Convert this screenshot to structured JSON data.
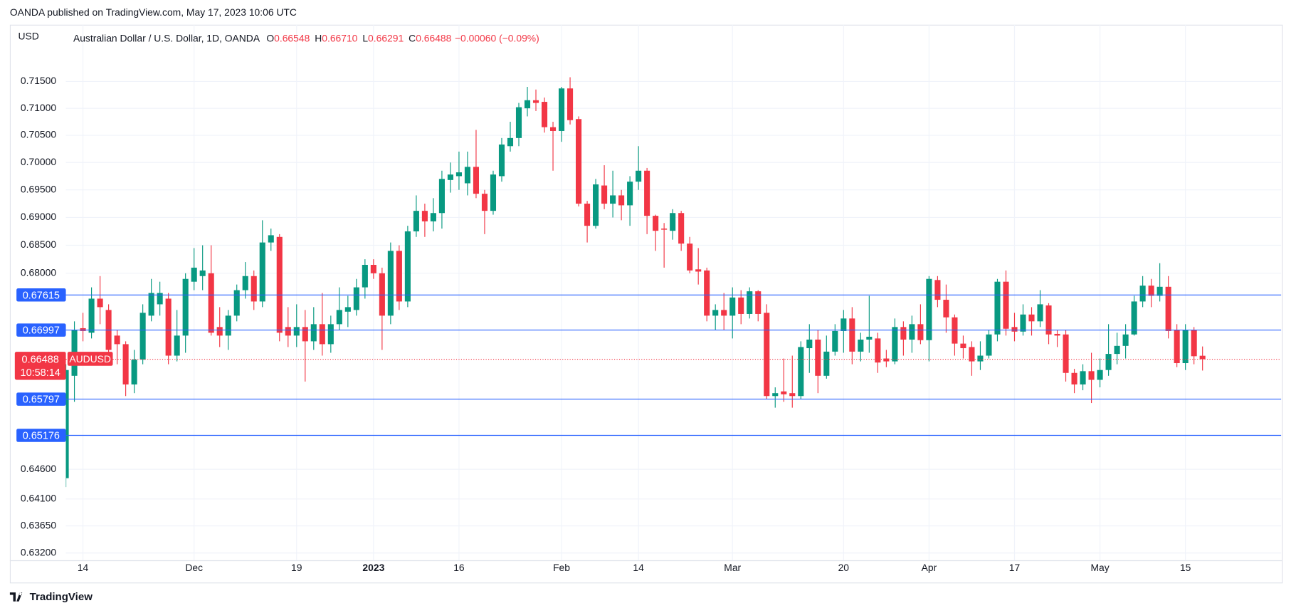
{
  "header": {
    "published": "OANDA published on TradingView.com, May 17, 2023 10:06 UTC",
    "currency": "USD",
    "instrument": "Australian Dollar / U.S. Dollar, 1D, OANDA",
    "legend": [
      {
        "key": "O",
        "value": "0.66548"
      },
      {
        "key": "H",
        "value": "0.66710"
      },
      {
        "key": "L",
        "value": "0.66291"
      },
      {
        "key": "C",
        "value": "0.66488"
      }
    ],
    "change": "−0.00060 (−0.09%)"
  },
  "chart_data": {
    "type": "candlestick",
    "categories": [
      null,
      null,
      "14",
      null,
      null,
      null,
      null,
      null,
      null,
      null,
      null,
      null,
      null,
      null,
      null,
      "Dec",
      null,
      null,
      null,
      null,
      null,
      null,
      null,
      null,
      null,
      null,
      null,
      "19",
      null,
      null,
      null,
      null,
      null,
      null,
      null,
      null,
      "2023",
      null,
      null,
      null,
      null,
      null,
      null,
      null,
      null,
      null,
      "16",
      null,
      null,
      null,
      null,
      null,
      null,
      null,
      null,
      null,
      null,
      null,
      "Feb",
      null,
      null,
      null,
      null,
      null,
      null,
      null,
      null,
      "14",
      null,
      null,
      null,
      null,
      null,
      null,
      null,
      null,
      null,
      null,
      "Mar",
      null,
      null,
      null,
      null,
      null,
      null,
      null,
      null,
      null,
      null,
      null,
      null,
      "20",
      null,
      null,
      null,
      null,
      null,
      null,
      null,
      null,
      null,
      "Apr",
      null,
      null,
      null,
      null,
      null,
      null,
      null,
      null,
      null,
      "17",
      null,
      null,
      null,
      null,
      null,
      null,
      null,
      null,
      null,
      "May",
      null,
      null,
      null,
      null,
      null,
      null,
      null,
      null,
      null,
      "15",
      null,
      null
    ],
    "open": [
      0.6445,
      0.662,
      0.6703,
      0.6695,
      0.6755,
      0.6735,
      0.669,
      0.6675,
      0.6605,
      0.6648,
      0.6725,
      0.6745,
      0.6755,
      0.6655,
      0.669,
      0.6785,
      0.6795,
      0.68,
      0.6705,
      0.669,
      0.6725,
      0.677,
      0.6795,
      0.675,
      0.6855,
      0.6865,
      0.6705,
      0.669,
      0.6705,
      0.668,
      0.671,
      0.6675,
      0.671,
      0.6732,
      0.6735,
      0.6775,
      0.6815,
      0.68,
      0.6725,
      0.684,
      0.675,
      0.6875,
      0.6912,
      0.6893,
      0.6908,
      0.6968,
      0.6975,
      0.6962,
      0.6992,
      0.6943,
      0.6912,
      0.6975,
      0.703,
      0.7045,
      0.71,
      0.7115,
      0.7112,
      0.7065,
      0.7058,
      0.7137,
      0.708,
      0.6925,
      0.6885,
      0.6958,
      0.6925,
      0.694,
      0.6922,
      0.6965,
      0.6985,
      0.6903,
      0.688,
      0.6876,
      0.6908,
      0.6853,
      0.6807,
      0.6805,
      0.6725,
      0.6735,
      0.6725,
      0.6757,
      0.6728,
      0.6768,
      0.673,
      0.6585,
      0.6593,
      0.659,
      0.6585,
      0.6668,
      0.6683,
      0.662,
      0.6662,
      0.6698,
      0.672,
      0.6662,
      0.6683,
      0.6685,
      0.665,
      0.6645,
      0.6705,
      0.6683,
      0.671,
      0.6682,
      0.6788,
      0.6753,
      0.6722,
      0.6676,
      0.667,
      0.6645,
      0.6655,
      0.6692,
      0.6785,
      0.6705,
      0.6697,
      0.6727,
      0.6715,
      0.6743,
      0.6693,
      0.6692,
      0.6625,
      0.6605,
      0.6628,
      0.6613,
      0.663,
      0.6658,
      0.6672,
      0.6692,
      0.675,
      0.6778,
      0.676,
      0.6776,
      0.67,
      0.6642,
      0.67,
      0.66548
    ],
    "high": [
      0.664,
      0.6715,
      0.673,
      0.6775,
      0.6795,
      0.6745,
      0.67,
      0.668,
      0.6665,
      0.6745,
      0.679,
      0.6785,
      0.6765,
      0.6735,
      0.68,
      0.6845,
      0.685,
      0.685,
      0.674,
      0.6735,
      0.678,
      0.682,
      0.6805,
      0.6895,
      0.688,
      0.687,
      0.674,
      0.6745,
      0.6735,
      0.674,
      0.6765,
      0.6725,
      0.6775,
      0.676,
      0.679,
      0.6825,
      0.6825,
      0.681,
      0.6855,
      0.685,
      0.6885,
      0.694,
      0.6925,
      0.6935,
      0.6985,
      0.7,
      0.702,
      0.702,
      0.706,
      0.695,
      0.6985,
      0.7045,
      0.7075,
      0.711,
      0.714,
      0.7135,
      0.712,
      0.7075,
      0.714,
      0.7158,
      0.7085,
      0.693,
      0.697,
      0.6995,
      0.6985,
      0.695,
      0.6975,
      0.703,
      0.699,
      0.6905,
      0.689,
      0.6915,
      0.6912,
      0.6865,
      0.6845,
      0.681,
      0.6745,
      0.6765,
      0.6775,
      0.677,
      0.6775,
      0.677,
      0.6745,
      0.66,
      0.665,
      0.6655,
      0.668,
      0.671,
      0.67,
      0.669,
      0.671,
      0.6735,
      0.674,
      0.6695,
      0.676,
      0.6695,
      0.6665,
      0.672,
      0.6715,
      0.6725,
      0.6745,
      0.6795,
      0.6795,
      0.678,
      0.6727,
      0.669,
      0.668,
      0.668,
      0.67,
      0.679,
      0.6805,
      0.673,
      0.6745,
      0.674,
      0.677,
      0.6747,
      0.67,
      0.67,
      0.6632,
      0.664,
      0.666,
      0.665,
      0.671,
      0.6695,
      0.671,
      0.676,
      0.6795,
      0.679,
      0.6818,
      0.6795,
      0.671,
      0.671,
      0.6705,
      0.6671
    ],
    "low": [
      0.643,
      0.6575,
      0.668,
      0.6685,
      0.671,
      0.664,
      0.664,
      0.6585,
      0.659,
      0.664,
      0.6715,
      0.6725,
      0.664,
      0.6645,
      0.666,
      0.677,
      0.677,
      0.669,
      0.667,
      0.6665,
      0.6715,
      0.6755,
      0.6735,
      0.674,
      0.684,
      0.668,
      0.667,
      0.667,
      0.661,
      0.6665,
      0.6655,
      0.666,
      0.67,
      0.6705,
      0.6725,
      0.6755,
      0.679,
      0.6665,
      0.671,
      0.6735,
      0.674,
      0.6865,
      0.6865,
      0.6875,
      0.688,
      0.6945,
      0.695,
      0.694,
      0.6935,
      0.687,
      0.6905,
      0.6965,
      0.702,
      0.703,
      0.7085,
      0.7095,
      0.7055,
      0.6985,
      0.7038,
      0.707,
      0.692,
      0.6855,
      0.688,
      0.6915,
      0.69,
      0.6895,
      0.6885,
      0.695,
      0.687,
      0.684,
      0.681,
      0.686,
      0.684,
      0.68,
      0.678,
      0.6715,
      0.67,
      0.67,
      0.6685,
      0.671,
      0.672,
      0.6715,
      0.658,
      0.6565,
      0.6575,
      0.6565,
      0.658,
      0.6625,
      0.659,
      0.6615,
      0.6655,
      0.666,
      0.664,
      0.6645,
      0.666,
      0.6625,
      0.6635,
      0.664,
      0.6655,
      0.666,
      0.6675,
      0.6645,
      0.674,
      0.6695,
      0.6655,
      0.665,
      0.662,
      0.663,
      0.665,
      0.668,
      0.669,
      0.668,
      0.669,
      0.669,
      0.6705,
      0.6675,
      0.667,
      0.661,
      0.659,
      0.6595,
      0.6573,
      0.66,
      0.662,
      0.664,
      0.665,
      0.669,
      0.674,
      0.674,
      0.675,
      0.6685,
      0.6635,
      0.663,
      0.664,
      0.66291
    ],
    "close": [
      0.663,
      0.67,
      0.6698,
      0.6755,
      0.674,
      0.6665,
      0.6675,
      0.6605,
      0.6648,
      0.673,
      0.6765,
      0.6765,
      0.6655,
      0.669,
      0.679,
      0.681,
      0.6805,
      0.6695,
      0.669,
      0.6725,
      0.677,
      0.6795,
      0.675,
      0.6855,
      0.6868,
      0.6695,
      0.669,
      0.6705,
      0.668,
      0.671,
      0.6675,
      0.671,
      0.6735,
      0.674,
      0.6775,
      0.6815,
      0.68,
      0.6725,
      0.684,
      0.675,
      0.6875,
      0.6912,
      0.6893,
      0.6908,
      0.697,
      0.6978,
      0.6982,
      0.6992,
      0.6943,
      0.6912,
      0.6978,
      0.7033,
      0.7045,
      0.7102,
      0.7115,
      0.711,
      0.7065,
      0.7058,
      0.7137,
      0.7078,
      0.6925,
      0.6885,
      0.696,
      0.6925,
      0.694,
      0.6922,
      0.6965,
      0.6985,
      0.6903,
      0.6876,
      0.6878,
      0.6908,
      0.6853,
      0.6805,
      0.6803,
      0.6725,
      0.6735,
      0.6725,
      0.6757,
      0.6728,
      0.6768,
      0.6728,
      0.6585,
      0.659,
      0.6588,
      0.6585,
      0.667,
      0.6683,
      0.662,
      0.6662,
      0.6698,
      0.672,
      0.6662,
      0.6683,
      0.6688,
      0.6643,
      0.6645,
      0.6705,
      0.6683,
      0.671,
      0.6682,
      0.679,
      0.6753,
      0.6722,
      0.6676,
      0.6668,
      0.6645,
      0.6655,
      0.6692,
      0.6785,
      0.6702,
      0.6697,
      0.6727,
      0.6715,
      0.6745,
      0.6692,
      0.669,
      0.6625,
      0.6605,
      0.6628,
      0.6613,
      0.663,
      0.6658,
      0.6672,
      0.6692,
      0.675,
      0.6778,
      0.676,
      0.6776,
      0.6698,
      0.6642,
      0.67,
      0.6654,
      0.66488
    ],
    "up_color": "#089981",
    "down_color": "#f23645",
    "log_scale": true,
    "ylim": [
      0.6308,
      0.7257
    ],
    "yticks": [
      {
        "value": 0.715,
        "label": "0.71500"
      },
      {
        "value": 0.71,
        "label": "0.71000"
      },
      {
        "value": 0.705,
        "label": "0.70500"
      },
      {
        "value": 0.7,
        "label": "0.70000"
      },
      {
        "value": 0.695,
        "label": "0.69500"
      },
      {
        "value": 0.69,
        "label": "0.69000"
      },
      {
        "value": 0.685,
        "label": "0.68500"
      },
      {
        "value": 0.68,
        "label": "0.68000"
      },
      {
        "value": 0.646,
        "label": "0.64600"
      },
      {
        "value": 0.641,
        "label": "0.64100"
      },
      {
        "value": 0.6365,
        "label": "0.63650"
      },
      {
        "value": 0.632,
        "label": "0.63200"
      }
    ],
    "grid": true,
    "price_lines": {
      "color": "#2962ff",
      "values": [
        0.67615,
        0.66997,
        0.65797,
        0.65176
      ]
    },
    "last_price": {
      "value": 0.66488,
      "symbol": "AUDUSD",
      "countdown": "10:58:14",
      "color": "#f23645"
    }
  },
  "footer": {
    "brand": "TradingView"
  }
}
